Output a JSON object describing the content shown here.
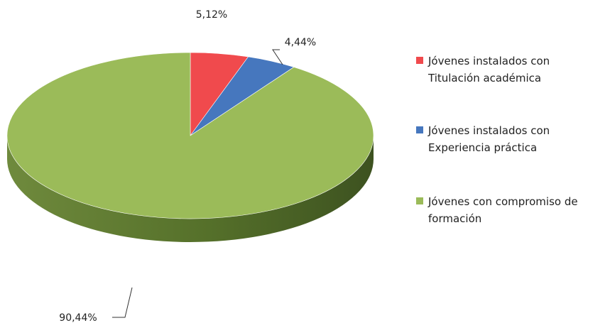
{
  "chart_data": {
    "type": "pie",
    "style": "3d",
    "series": [
      {
        "name": "Jóvenes instalados con Titulación académica",
        "value": 5.12,
        "label": "5,12%",
        "color": "#f04a4d"
      },
      {
        "name": "Jóvenes instalados con Experiencia práctica",
        "value": 4.44,
        "label": "4,44%",
        "color": "#4677be"
      },
      {
        "name": "Jóvenes con compromiso de formación",
        "value": 90.44,
        "label": "90,44%",
        "color": "#9bbb59"
      }
    ],
    "legend_position": "right"
  },
  "legend": {
    "items": [
      {
        "label": "Jóvenes instalados con\nTitulación académica"
      },
      {
        "label": "Jóvenes instalados con\nExperiencia práctica"
      },
      {
        "label": "Jóvenes con compromiso de\nformación"
      }
    ]
  }
}
